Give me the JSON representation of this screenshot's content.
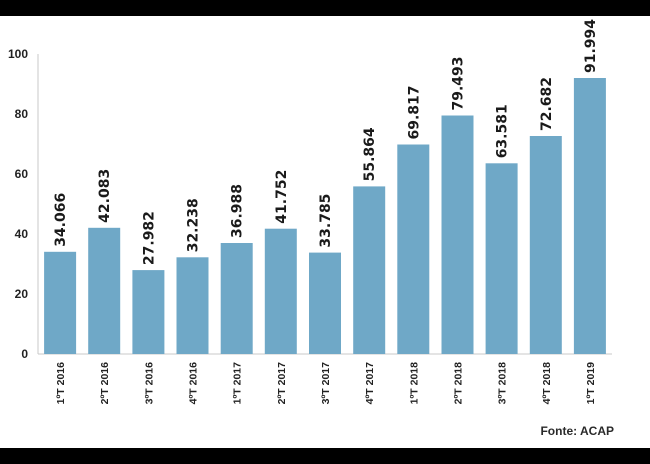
{
  "chart_data": {
    "type": "bar",
    "categories": [
      "1ºT 2016",
      "2ºT 2016",
      "3ºT 2016",
      "4ºT 2016",
      "1ºT 2017",
      "2ºT 2017",
      "3ºT 2017",
      "4ºT 2017",
      "1ºT 2018",
      "2ºT 2018",
      "3ºT 2018",
      "4ºT 2018",
      "1ºT 2019"
    ],
    "values": [
      34.066,
      42.083,
      27.982,
      32.238,
      36.988,
      41.752,
      33.785,
      55.864,
      69.817,
      79.493,
      63.581,
      72.682,
      91.994
    ],
    "value_labels": [
      "34.066",
      "42.083",
      "27.982",
      "32.238",
      "36.988",
      "41.752",
      "33.785",
      "55.864",
      "69.817",
      "79.493",
      "63.581",
      "72.682",
      "91.994"
    ],
    "title": "",
    "xlabel": "",
    "ylabel": "",
    "ylim": [
      0,
      100
    ],
    "yticks": [
      0,
      20,
      40,
      60,
      80,
      100
    ],
    "grid": false,
    "bar_color": "#6fa8c7"
  },
  "source_note": "Fonte: ACAP",
  "colors": {
    "background": "#ffffff",
    "frame": "#000000"
  }
}
